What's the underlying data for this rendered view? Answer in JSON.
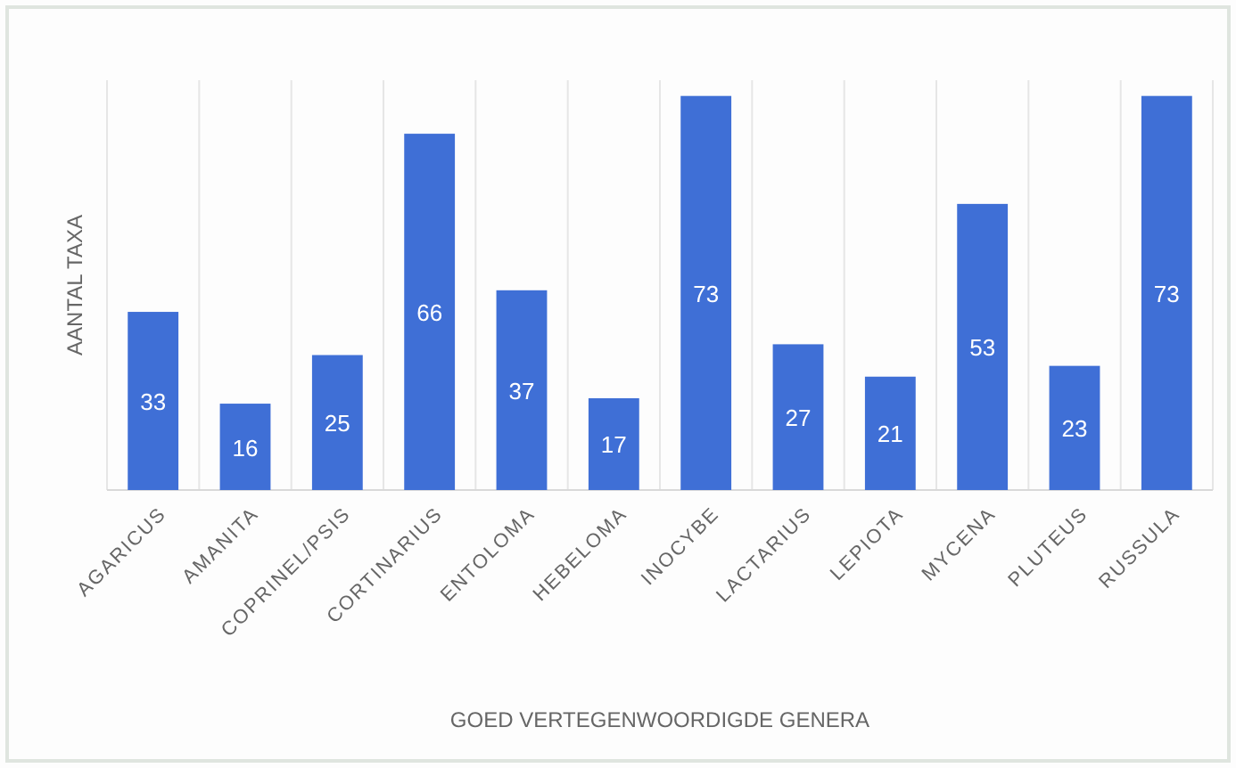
{
  "chart_data": {
    "type": "bar",
    "xlabel": "GOED VERTEGENWOORDIGDE GENERA",
    "ylabel": "AANTAL TAXA",
    "categories": [
      "AGARICUS",
      "AMANITA",
      "COPRINEL/PSIS",
      "CORTINARIUS",
      "ENTOLOMA",
      "HEBELOMA",
      "INOCYBE",
      "LACTARIUS",
      "LEPIOTA",
      "MYCENA",
      "PLUTEUS",
      "RUSSULA"
    ],
    "values": [
      33,
      16,
      25,
      66,
      37,
      17,
      73,
      27,
      21,
      53,
      23,
      73
    ],
    "color": "#3f6fd6",
    "data_labels": true,
    "grid": "x"
  }
}
